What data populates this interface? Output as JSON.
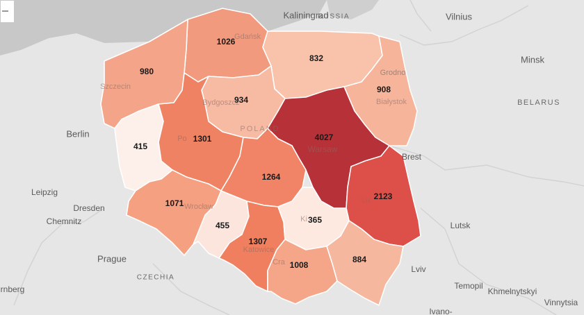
{
  "map": {
    "places": {
      "kaliningrad": "Kaliningrad",
      "russia": "RUSSIA",
      "vilnius": "Vilnius",
      "minsk": "Minsk",
      "belarus": "BELARUS",
      "berlin": "Berlin",
      "leipzig": "Leipzig",
      "dresden": "Dresden",
      "chemnitz": "Chemnitz",
      "prague": "Prague",
      "czechia": "CZECHIA",
      "nuremberg": "rnberg",
      "brest": "Brest",
      "lutsk": "Lutsk",
      "lviv": "Lviv",
      "ternopil": "Temopil",
      "khmelnytskyi": "Khmelnytskyi",
      "vinnytsia": "Vinnytsia",
      "ivano": "Ivano-",
      "grodno": "Grodno",
      "gdansk": "Gdańsk",
      "szczecin": "Szczecin",
      "bydgoszcz": "Bydgoszcz",
      "poland": "POLAND",
      "warsaw": "Warsaw",
      "bialystok": "Białystok",
      "poznan": "Po",
      "wroclaw": "Wrocław",
      "lublin": "Lu",
      "kielce": "Ki",
      "katowice": "Katowice",
      "krakow": "Cra"
    },
    "regions": [
      {
        "id": "pomorskie",
        "value": "1026",
        "color": "#f29a7d"
      },
      {
        "id": "zachodniopomorskie",
        "value": "980",
        "color": "#f4a489"
      },
      {
        "id": "warminsko-mazurskie",
        "value": "832",
        "color": "#f8c2ab"
      },
      {
        "id": "podlaskie",
        "value": "908",
        "color": "#f6b49b"
      },
      {
        "id": "kujawsko-pomorskie",
        "value": "934",
        "color": "#f7baa3"
      },
      {
        "id": "lubuskie",
        "value": "415",
        "color": "#fdefe9"
      },
      {
        "id": "wielkopolskie",
        "value": "1301",
        "color": "#ef8262"
      },
      {
        "id": "mazowieckie",
        "value": "4027",
        "color": "#b73138"
      },
      {
        "id": "lodzkie",
        "value": "1264",
        "color": "#f18466"
      },
      {
        "id": "lubelskie",
        "value": "2123",
        "color": "#dd4f49"
      },
      {
        "id": "dolnoslaskie",
        "value": "1071",
        "color": "#f4a081"
      },
      {
        "id": "opolskie",
        "value": "455",
        "color": "#fce5dc"
      },
      {
        "id": "slaskie",
        "value": "1307",
        "color": "#ef7f5f"
      },
      {
        "id": "swietokrzyskie",
        "value": "365",
        "color": "#fde9e0"
      },
      {
        "id": "malopolskie",
        "value": "1008",
        "color": "#f5a588"
      },
      {
        "id": "podkarpackie",
        "value": "884",
        "color": "#f6b79f"
      }
    ]
  },
  "colors": {
    "land": "#e6e6e6",
    "sea": "#c8c8c8",
    "border": "#ffffff"
  }
}
